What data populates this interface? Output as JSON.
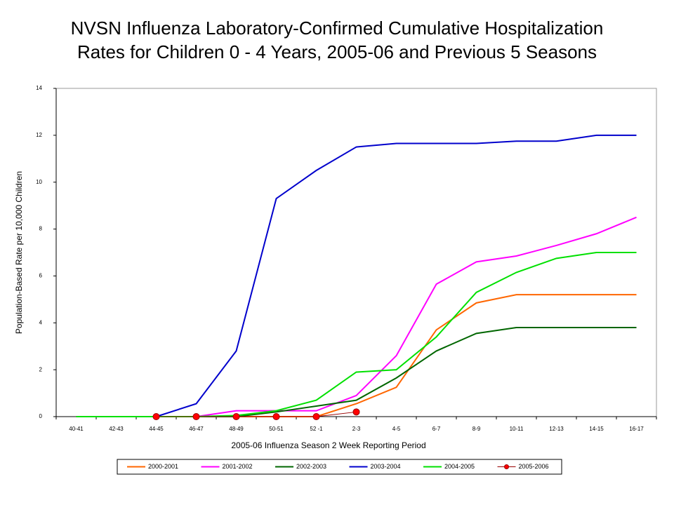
{
  "chart_data": {
    "type": "line",
    "title": [
      "NVSN Influenza Laboratory-Confirmed Cumulative Hospitalization",
      "Rates for Children 0 - 4 Years,  2005-06 and Previous 5 Seasons"
    ],
    "xlabel": "2005-06 Influenza Season 2 Week Reporting Period",
    "ylabel": "Population-Based Rate per 10,000 Children",
    "categories": [
      "40-41",
      "42-43",
      "44-45",
      "46-47",
      "48-49",
      "50-51",
      "52 -1",
      "2-3",
      "4-5",
      "6-7",
      "8-9",
      "10-11",
      "12-13",
      "14-15",
      "16-17"
    ],
    "ylim": [
      0,
      14
    ],
    "yticks": [
      0,
      2,
      4,
      6,
      8,
      10,
      12,
      14
    ],
    "legend": "bottom",
    "series": [
      {
        "name": "2000-2001",
        "color": "#ff6600",
        "values": [
          0,
          0,
          0,
          0,
          0,
          0,
          0,
          0.55,
          1.25,
          3.7,
          4.85,
          5.2,
          5.2,
          5.2,
          5.2
        ]
      },
      {
        "name": "2001-2002",
        "color": "#ff00ff",
        "values": [
          0,
          0,
          0,
          0,
          0.25,
          0.25,
          0.25,
          0.9,
          2.6,
          5.65,
          6.6,
          6.85,
          7.3,
          7.8,
          8.5
        ]
      },
      {
        "name": "2002-2003",
        "color": "#006600",
        "values": [
          0,
          0,
          0,
          0,
          0,
          0.2,
          0.45,
          0.7,
          1.65,
          2.8,
          3.55,
          3.8,
          3.8,
          3.8,
          3.8
        ]
      },
      {
        "name": "2003-2004",
        "color": "#0000cc",
        "values": [
          0,
          0,
          0,
          0.55,
          2.8,
          9.3,
          10.5,
          11.5,
          11.65,
          11.65,
          11.65,
          11.75,
          11.75,
          12.0,
          12.0
        ]
      },
      {
        "name": "2004-2005",
        "color": "#00e000",
        "values": [
          0,
          0,
          0,
          0,
          0.05,
          0.25,
          0.7,
          1.9,
          2.0,
          3.4,
          5.3,
          6.15,
          6.75,
          7.0,
          7.0
        ]
      },
      {
        "name": "2005-2006",
        "color": "#ff0000",
        "marker": "circle",
        "values": [
          null,
          null,
          0,
          0,
          0,
          0,
          0,
          0.2,
          null,
          null,
          null,
          null,
          null,
          null,
          null
        ]
      }
    ]
  }
}
